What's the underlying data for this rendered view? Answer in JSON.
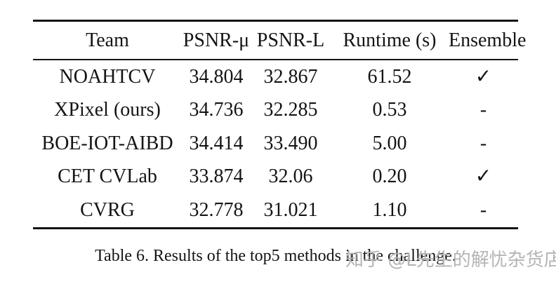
{
  "table": {
    "columns": [
      "Team",
      "PSNR-μ",
      "PSNR-L",
      "Runtime (s)",
      "Ensemble"
    ],
    "rows": [
      [
        "NOAHTCV",
        "34.804",
        "32.867",
        "61.52",
        "✓"
      ],
      [
        "XPixel (ours)",
        "34.736",
        "32.285",
        "0.53",
        "-"
      ],
      [
        "BOE-IOT-AIBD",
        "34.414",
        "33.490",
        "5.00",
        "-"
      ],
      [
        "CET CVLab",
        "33.874",
        "32.06",
        "0.20",
        "✓"
      ],
      [
        "CVRG",
        "32.778",
        "31.021",
        "1.10",
        "-"
      ]
    ]
  },
  "caption": "Table 6. Results of the top5 methods in the challenge.",
  "watermark": {
    "text": "知乎 @L先生的解忧杂货店",
    "color": "#b5b5b5"
  },
  "colors": {
    "text": "#141414",
    "rule": "#141414",
    "background": "#ffffff"
  }
}
